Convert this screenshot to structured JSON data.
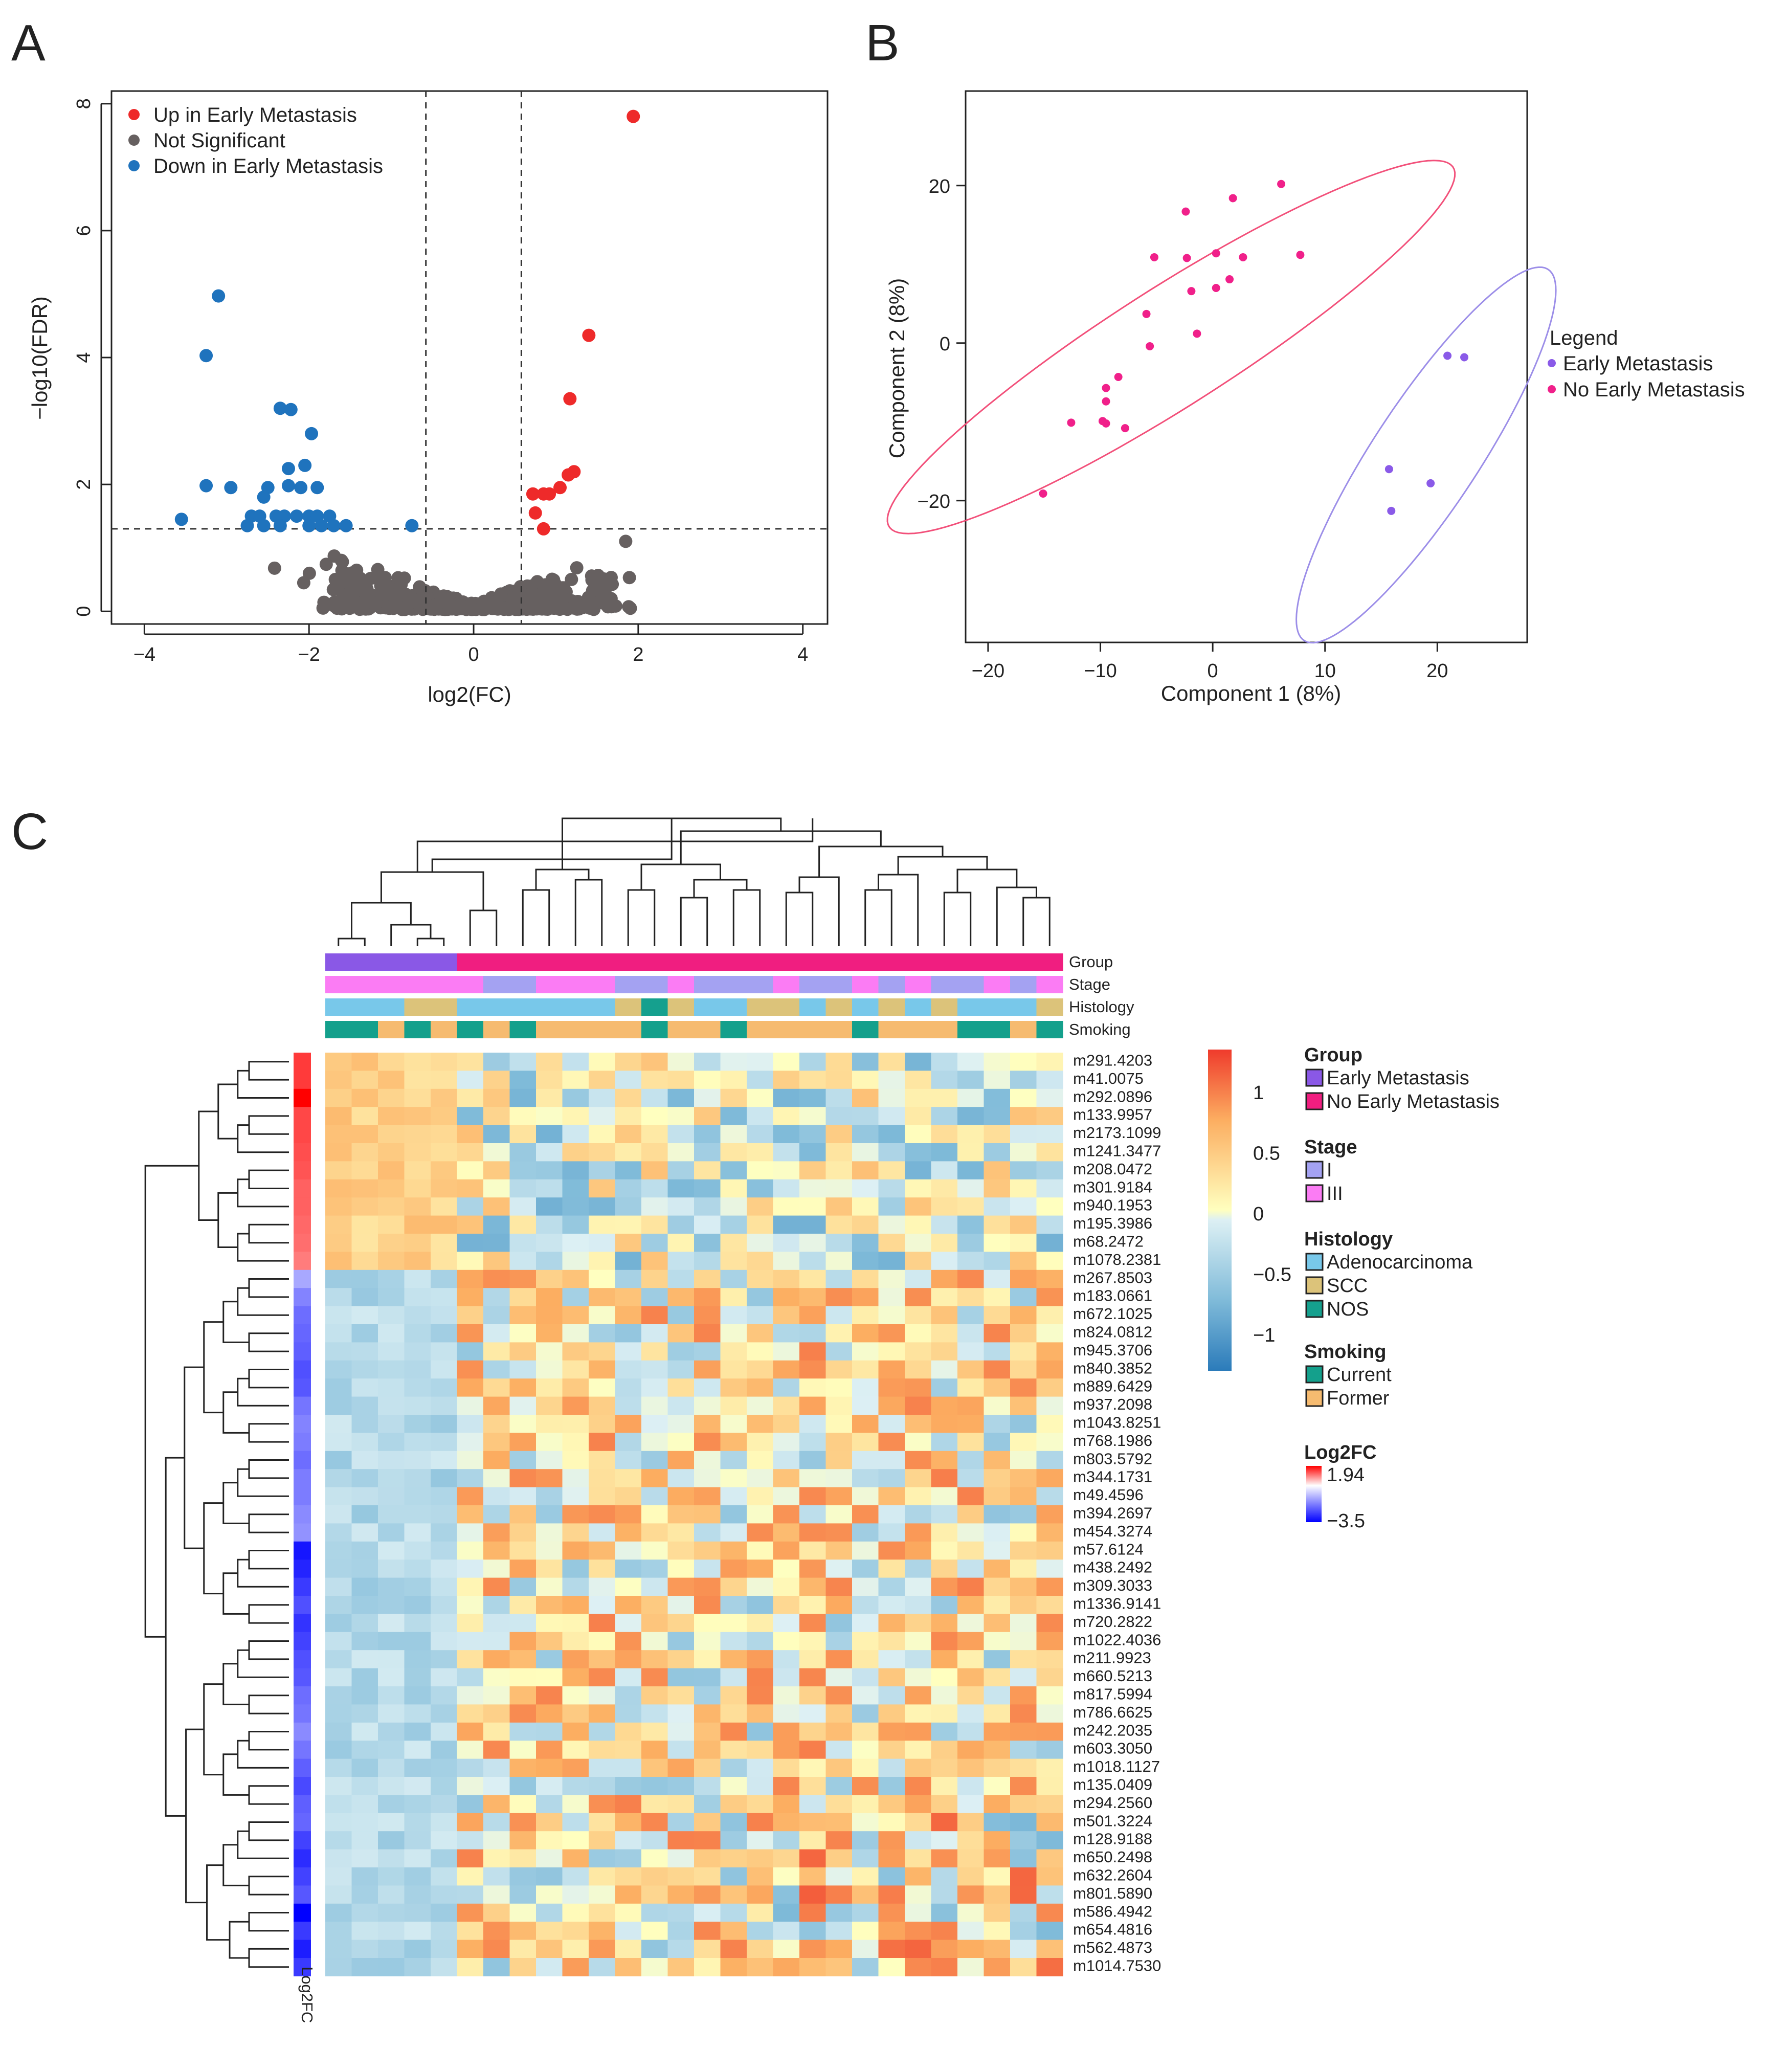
{
  "panels": {
    "a": "A",
    "b": "B",
    "c": "C"
  },
  "chart_data": [
    {
      "type": "scatter",
      "panel": "A",
      "title": "",
      "xlabel": "log2(FC)",
      "ylabel": "−log10(FDR)",
      "xlim": [
        -4.4,
        4.3
      ],
      "ylim": [
        -0.2,
        8.2
      ],
      "xticks": [
        -4,
        -2,
        0,
        2,
        4
      ],
      "xtick_labels": [
        "−4",
        "−2",
        "0",
        "2",
        "4"
      ],
      "yticks": [
        0,
        2,
        4,
        6,
        8
      ],
      "ytick_labels": [
        "0",
        "2",
        "4",
        "6",
        "8"
      ],
      "thresholds": {
        "x": [
          -0.58,
          0.58
        ],
        "y": 1.3
      },
      "grid": false,
      "legend_position": "top-left",
      "series": [
        {
          "name": "Up in Early Metastasis",
          "color": "#ee2a2a",
          "points": [
            [
              1.94,
              7.8
            ],
            [
              1.4,
              4.35
            ],
            [
              1.17,
              3.35
            ],
            [
              1.22,
              2.2
            ],
            [
              1.15,
              2.15
            ],
            [
              1.05,
              1.95
            ],
            [
              0.92,
              1.85
            ],
            [
              0.85,
              1.85
            ],
            [
              0.72,
              1.85
            ],
            [
              0.75,
              1.55
            ],
            [
              0.85,
              1.3
            ]
          ]
        },
        {
          "name": "Not Significant",
          "color": "#666060",
          "points": []
        },
        {
          "name": "Down in Early Metastasis",
          "color": "#1f73bd",
          "points": [
            [
              -3.1,
              4.97
            ],
            [
              -3.25,
              4.03
            ],
            [
              -2.35,
              3.2
            ],
            [
              -2.22,
              3.18
            ],
            [
              -1.97,
              2.8
            ],
            [
              -2.05,
              2.3
            ],
            [
              -2.25,
              2.25
            ],
            [
              -3.25,
              1.98
            ],
            [
              -2.95,
              1.95
            ],
            [
              -2.5,
              1.95
            ],
            [
              -2.25,
              1.98
            ],
            [
              -2.1,
              1.95
            ],
            [
              -1.9,
              1.95
            ],
            [
              -2.55,
              1.8
            ],
            [
              -2.7,
              1.5
            ],
            [
              -2.6,
              1.5
            ],
            [
              -2.4,
              1.5
            ],
            [
              -2.3,
              1.5
            ],
            [
              -2.15,
              1.5
            ],
            [
              -2.0,
              1.5
            ],
            [
              -1.9,
              1.5
            ],
            [
              -1.75,
              1.5
            ],
            [
              -3.55,
              1.45
            ],
            [
              -2.75,
              1.35
            ],
            [
              -2.55,
              1.35
            ],
            [
              -2.35,
              1.35
            ],
            [
              -2.0,
              1.35
            ],
            [
              -1.85,
              1.35
            ],
            [
              -1.7,
              1.35
            ],
            [
              -1.55,
              1.35
            ],
            [
              -0.75,
              1.35
            ]
          ]
        }
      ]
    },
    {
      "type": "scatter",
      "panel": "B",
      "title": "",
      "xlabel": "Component 1 (8%)",
      "ylabel": "Component 2 (8%)",
      "xlim": [
        -22,
        28
      ],
      "ylim": [
        -38,
        32
      ],
      "xticks": [
        -20,
        -10,
        0,
        10,
        20
      ],
      "xtick_labels": [
        "−20",
        "−10",
        "0",
        "10",
        "20"
      ],
      "yticks": [
        -20,
        0,
        20
      ],
      "ytick_labels": [
        "−20",
        "0",
        "20"
      ],
      "grid": false,
      "legend_title": "Legend",
      "legend_position": "right",
      "series": [
        {
          "name": "Early Metastasis",
          "color": "#8a5ae8",
          "points": [
            [
              20.9,
              -1.6
            ],
            [
              22.4,
              -1.8
            ],
            [
              15.7,
              -16.0
            ],
            [
              19.4,
              -17.8
            ],
            [
              15.9,
              -21.3
            ]
          ]
        },
        {
          "name": "No Early Metastasis",
          "color": "#f0208a",
          "points": [
            [
              6.1,
              20.2
            ],
            [
              1.8,
              18.4
            ],
            [
              -2.4,
              16.7
            ],
            [
              0.3,
              11.4
            ],
            [
              -5.2,
              10.9
            ],
            [
              7.8,
              11.2
            ],
            [
              2.7,
              10.9
            ],
            [
              -2.3,
              10.8
            ],
            [
              1.5,
              8.1
            ],
            [
              0.3,
              7.0
            ],
            [
              -1.9,
              6.6
            ],
            [
              -5.9,
              3.7
            ],
            [
              -1.4,
              1.2
            ],
            [
              -5.6,
              -0.4
            ],
            [
              -8.4,
              -4.3
            ],
            [
              -9.5,
              -5.7
            ],
            [
              -9.5,
              -7.4
            ],
            [
              -9.8,
              -9.9
            ],
            [
              -9.5,
              -10.2
            ],
            [
              -12.6,
              -10.1
            ],
            [
              -7.8,
              -10.8
            ],
            [
              -15.1,
              -19.1
            ]
          ]
        }
      ],
      "ellipses": [
        {
          "series": "No Early Metastasis",
          "cx": -3.7,
          "cy": -0.5,
          "rx": 34,
          "ry": 6.6,
          "angle": 43,
          "color": "#f2507a"
        },
        {
          "series": "Early Metastasis",
          "cx": 19.0,
          "cy": -14.2,
          "rx": 26,
          "ry": 5.1,
          "angle": 66,
          "color": "#9c8ee8"
        }
      ]
    },
    {
      "type": "heatmap",
      "panel": "C",
      "title": "",
      "rows": [
        "m291.4203",
        "m41.0075",
        "m292.0896",
        "m133.9957",
        "m2173.1099",
        "m1241.3477",
        "m208.0472",
        "m301.9184",
        "m940.1953",
        "m195.3986",
        "m68.2472",
        "m1078.2381",
        "m267.8503",
        "m183.0661",
        "m672.1025",
        "m824.0812",
        "m945.3706",
        "m840.3852",
        "m889.6429",
        "m937.2098",
        "m1043.8251",
        "m768.1986",
        "m803.5792",
        "m344.1731",
        "m49.4596",
        "m394.2697",
        "m454.3274",
        "m57.6124",
        "m438.2492",
        "m309.3033",
        "m1336.9141",
        "m720.2822",
        "m1022.4036",
        "m211.9923",
        "m660.5213",
        "m817.5994",
        "m786.6625",
        "m242.2035",
        "m603.3050",
        "m1018.1127",
        "m135.0409",
        "m294.2560",
        "m501.3224",
        "m128.9188",
        "m650.2498",
        "m632.2604",
        "m801.5890",
        "m586.4942",
        "m654.4816",
        "m562.4873",
        "m1014.7530"
      ],
      "row_log2fc": [
        1.5,
        1.5,
        1.94,
        1.4,
        1.4,
        1.35,
        1.3,
        1.2,
        1.2,
        1.15,
        1.1,
        1.0,
        -1.2,
        -1.7,
        -2.0,
        -2.1,
        -2.2,
        -2.4,
        -2.3,
        -1.9,
        -1.7,
        -1.8,
        -2.0,
        -1.8,
        -1.8,
        -1.6,
        -1.5,
        -3.2,
        -3.0,
        -2.7,
        -2.4,
        -2.8,
        -2.6,
        -2.4,
        -2.3,
        -2.0,
        -1.9,
        -1.6,
        -1.9,
        -2.2,
        -2.5,
        -2.2,
        -2.1,
        -2.6,
        -2.9,
        -2.6,
        -2.3,
        -3.5,
        -2.7,
        -3.1,
        -2.7
      ],
      "n_columns": 28,
      "annotations": {
        "labels": [
          "Group",
          "Stage",
          "Histology",
          "Smoking"
        ],
        "Group": [
          "E",
          "E",
          "E",
          "E",
          "E",
          "N",
          "N",
          "N",
          "N",
          "N",
          "N",
          "N",
          "N",
          "N",
          "N",
          "N",
          "N",
          "N",
          "N",
          "N",
          "N",
          "N",
          "N",
          "N",
          "N",
          "N",
          "N",
          "N"
        ],
        "Stage": [
          "III",
          "III",
          "III",
          "III",
          "III",
          "III",
          "I",
          "I",
          "III",
          "III",
          "III",
          "I",
          "I",
          "III",
          "I",
          "I",
          "I",
          "III",
          "I",
          "I",
          "III",
          "I",
          "III",
          "I",
          "I",
          "III",
          "I",
          "III"
        ],
        "Histology": [
          "A",
          "A",
          "A",
          "S",
          "S",
          "A",
          "A",
          "A",
          "A",
          "A",
          "A",
          "S",
          "N",
          "S",
          "A",
          "A",
          "S",
          "S",
          "A",
          "S",
          "A",
          "S",
          "A",
          "S",
          "A",
          "A",
          "A",
          "S"
        ],
        "Smoking": [
          "C",
          "C",
          "F",
          "C",
          "F",
          "C",
          "F",
          "C",
          "F",
          "F",
          "F",
          "F",
          "C",
          "F",
          "F",
          "C",
          "F",
          "F",
          "F",
          "F",
          "C",
          "F",
          "F",
          "F",
          "C",
          "C",
          "F",
          "C"
        ]
      },
      "colorbar": {
        "ticks": [
          "1",
          "0.5",
          "0",
          "−0.5",
          "−1"
        ],
        "values": [
          1,
          0.5,
          0,
          -0.5,
          -1
        ],
        "range": [
          -1.3,
          1.35
        ]
      },
      "keys": [
        {
          "title": "Group",
          "items": [
            {
              "code": "E",
              "label": "Early Metastasis",
              "color": "#8a58e6"
            },
            {
              "code": "N",
              "label": "No Early Metastasis",
              "color": "#f01e80"
            }
          ]
        },
        {
          "title": "Stage",
          "items": [
            {
              "code": "I",
              "label": "I",
              "color": "#a4a2f2"
            },
            {
              "code": "III",
              "label": "III",
              "color": "#fb7cf4"
            }
          ]
        },
        {
          "title": "Histology",
          "items": [
            {
              "code": "A",
              "label": "Adenocarcinoma",
              "color": "#78c8ea"
            },
            {
              "code": "S",
              "label": "SCC",
              "color": "#dcc37a"
            },
            {
              "code": "N",
              "label": "NOS",
              "color": "#15a08e"
            }
          ]
        },
        {
          "title": "Smoking",
          "items": [
            {
              "code": "C",
              "label": "Current",
              "color": "#14a08c"
            },
            {
              "code": "F",
              "label": "Former",
              "color": "#f6bb70"
            }
          ]
        }
      ],
      "log2fc_key": {
        "title": "Log2FC",
        "max_label": "1.94",
        "min_label": "−3.5"
      },
      "row_annotation_label": "Log2FC"
    }
  ]
}
